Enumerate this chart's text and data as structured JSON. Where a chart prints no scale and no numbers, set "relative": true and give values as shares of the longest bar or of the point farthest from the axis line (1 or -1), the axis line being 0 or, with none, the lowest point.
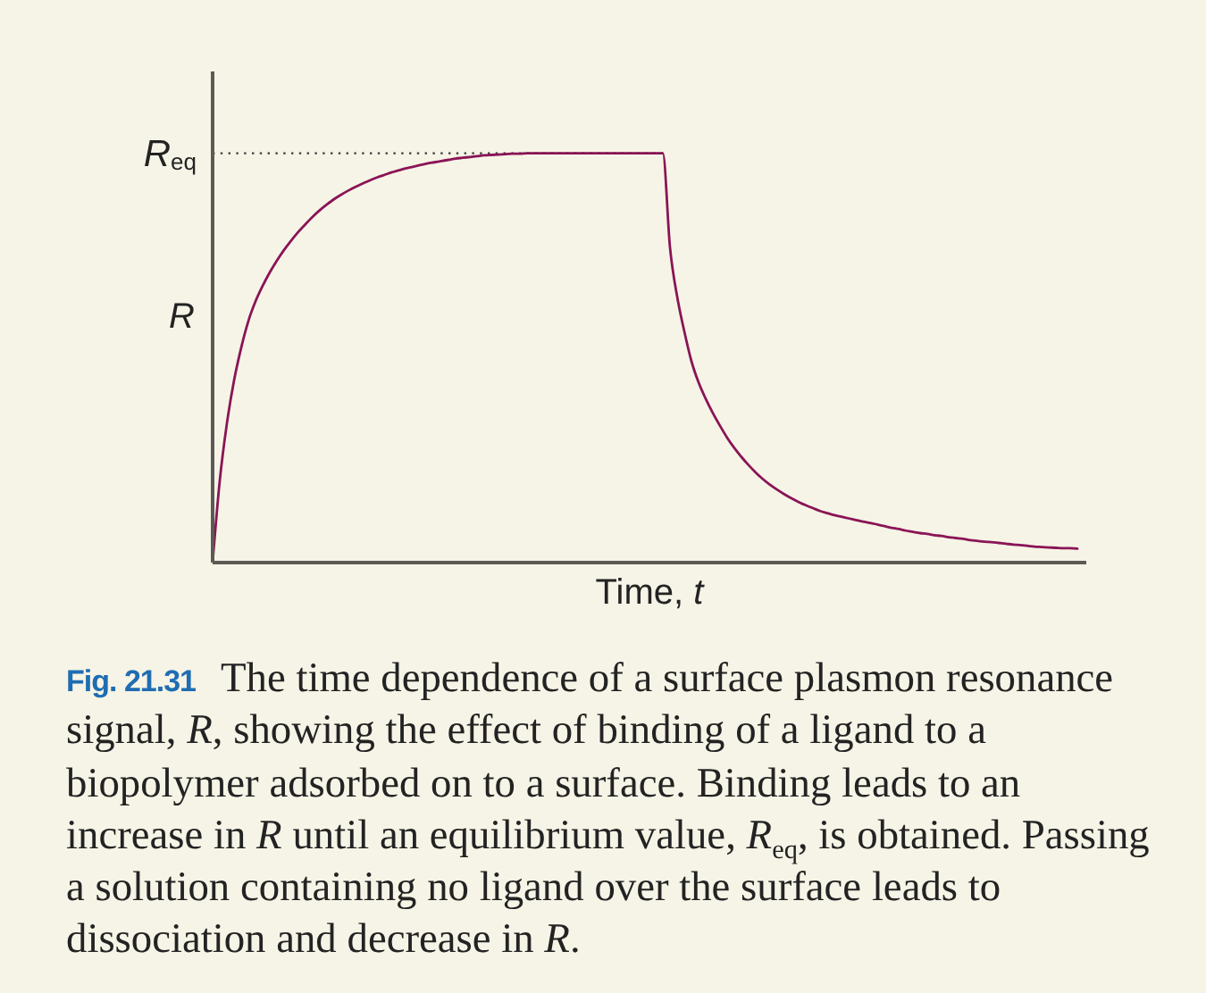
{
  "chart_data": {
    "type": "line",
    "relative": true,
    "xlabel": "Time, t",
    "ylabel": "R",
    "marker": "none",
    "line_style": "solid",
    "categories": [
      null,
      null,
      null,
      null,
      null,
      null,
      null,
      null,
      null,
      null,
      null,
      null,
      null,
      null,
      null,
      null,
      null,
      null,
      null,
      null,
      null,
      null,
      null,
      null,
      null,
      null,
      null,
      null,
      null,
      null,
      null,
      null,
      null,
      null,
      null,
      null,
      null,
      null,
      null,
      null,
      null,
      null,
      null,
      null,
      null,
      null,
      null,
      null,
      null,
      null,
      null,
      null,
      null,
      null,
      null,
      null,
      null,
      null,
      null,
      null,
      null,
      null,
      null,
      null,
      null,
      null,
      null,
      null,
      null,
      null,
      null,
      null,
      null,
      null,
      null,
      null,
      null,
      null,
      null,
      null,
      null,
      null,
      null,
      null,
      null,
      null,
      null,
      null,
      null,
      null,
      null,
      null,
      null,
      null,
      null,
      null,
      null,
      null,
      null,
      null,
      null,
      null,
      null,
      null,
      null,
      null,
      null,
      null,
      null,
      null,
      null,
      null,
      null,
      null,
      null,
      null,
      null,
      null,
      null,
      null,
      null,
      null
    ],
    "series": [
      {
        "color": "#8a1457",
        "values": [
          0,
          0.2,
          0.34,
          0.445,
          0.525,
          0.59,
          0.638,
          0.676,
          0.709,
          0.738,
          0.764,
          0.787,
          0.808,
          0.827,
          0.845,
          0.861,
          0.875,
          0.888,
          0.899,
          0.909,
          0.918,
          0.926,
          0.934,
          0.941,
          0.947,
          0.953,
          0.958,
          0.963,
          0.967,
          0.971,
          0.975,
          0.978,
          0.981,
          0.984,
          0.987,
          0.989,
          0.991,
          0.993,
          0.995,
          0.996,
          0.997,
          0.998,
          0.999,
          0.999,
          1,
          1,
          1,
          1,
          1,
          1,
          1,
          1,
          1,
          1,
          1,
          1,
          1,
          1,
          1,
          1,
          1,
          1,
          1,
          1,
          0.77,
          0.65,
          0.565,
          0.492,
          0.44,
          0.4,
          0.365,
          0.334,
          0.305,
          0.28,
          0.258,
          0.238,
          0.22,
          0.204,
          0.19,
          0.178,
          0.167,
          0.157,
          0.148,
          0.14,
          0.133,
          0.126,
          0.121,
          0.116,
          0.112,
          0.108,
          0.104,
          0.1,
          0.097,
          0.093,
          0.089,
          0.085,
          0.082,
          0.078,
          0.075,
          0.072,
          0.07,
          0.067,
          0.065,
          0.062,
          0.06,
          0.058,
          0.055,
          0.053,
          0.051,
          0.05,
          0.048,
          0.046,
          0.044,
          0.043,
          0.041,
          0.039,
          0.038,
          0.037,
          0.036,
          0.035,
          0.035,
          0.034
        ]
      }
    ],
    "ref_lines": [
      {
        "axis": "y",
        "value": 1,
        "label": "R$_{eq}$",
        "line_style": "dotted",
        "color": "#3a3a3a"
      }
    ],
    "annotations": [
      "Fig. 21.31 The time dependence of a surface plasmon resonance signal, R, showing the effect of binding of a ligand to a biopolymer adsorbed on to a surface. Binding leads to an increase in R until an equilibrium value, R$_{eq}$, is obtained. Passing a solution containing no ligand over the surface leads to dissociation and decrease in R."
    ]
  }
}
